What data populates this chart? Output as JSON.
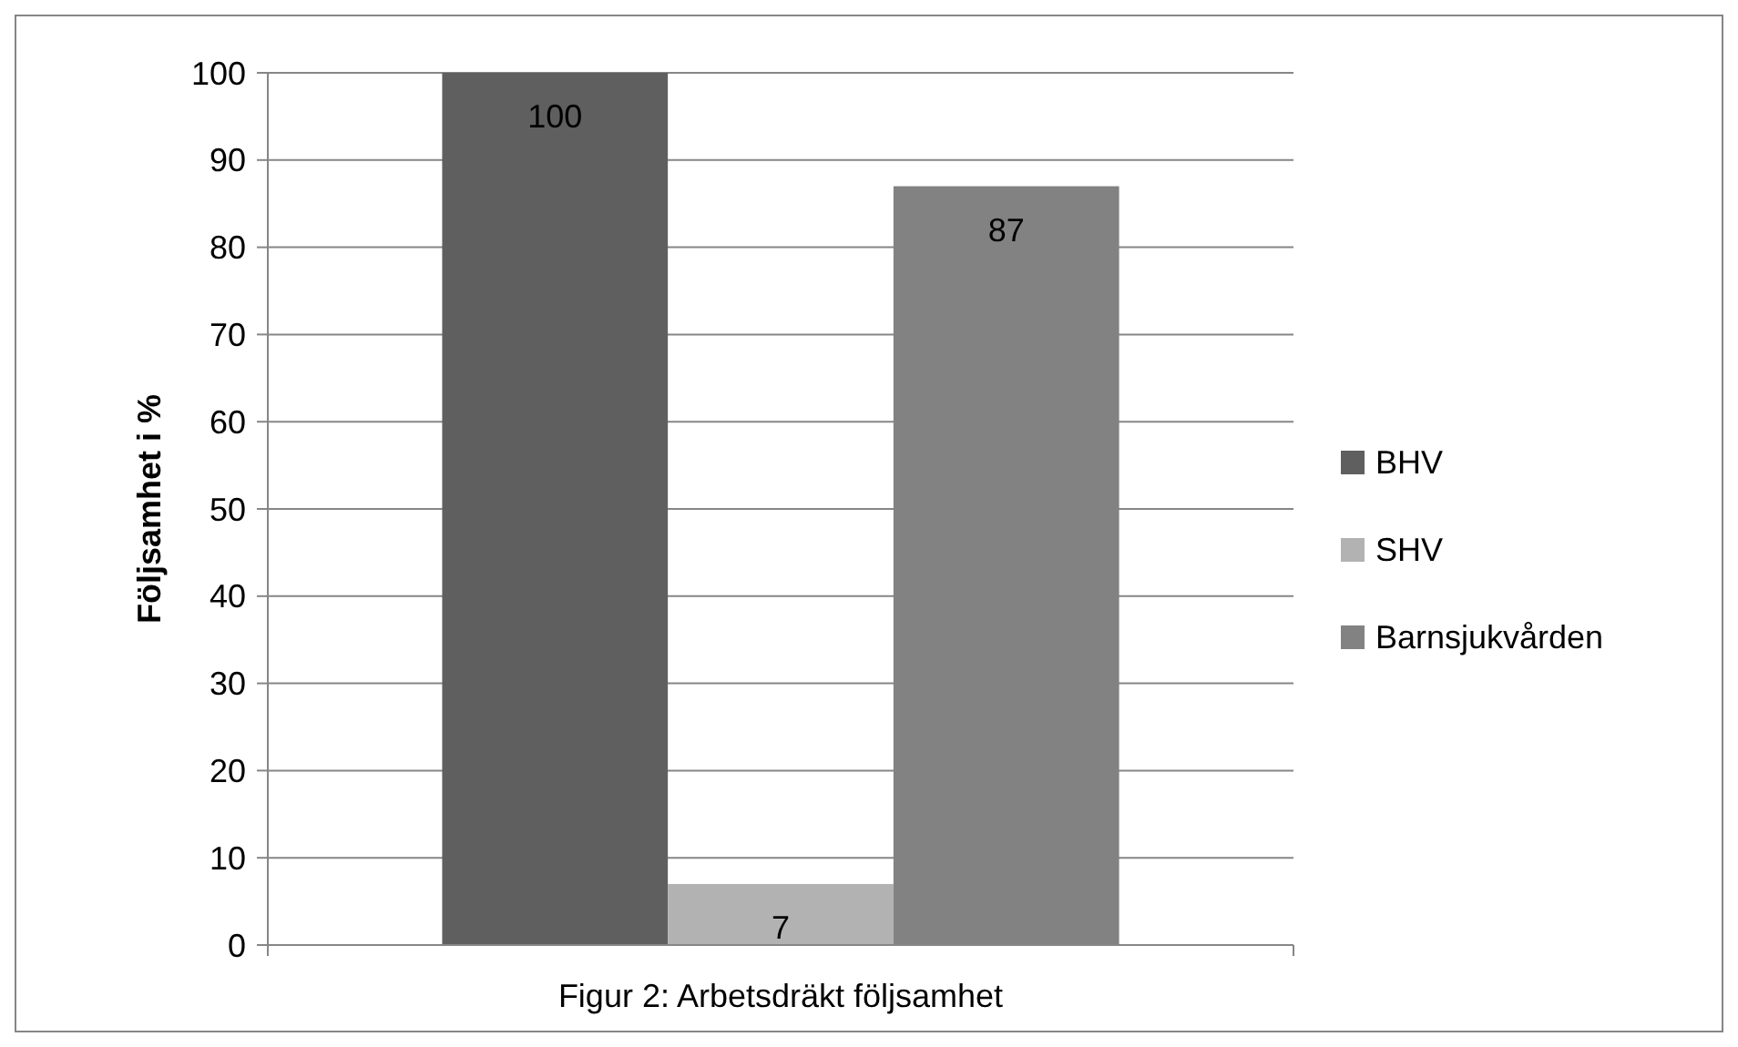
{
  "chart_data": {
    "type": "bar",
    "xlabel": "Figur 2: Arbetsdräkt följsamhet",
    "ylabel": "Följsamhet i %",
    "categories": [
      null
    ],
    "series": [
      {
        "name": "BHV",
        "color": "#5f5f5f",
        "values": [
          100
        ]
      },
      {
        "name": "SHV",
        "color": "#b2b2b2",
        "values": [
          7
        ]
      },
      {
        "name": "Barnsjukvården",
        "color": "#828282",
        "values": [
          87
        ]
      }
    ],
    "ylim": [
      0,
      100
    ],
    "yticks": [
      0,
      10,
      20,
      30,
      40,
      50,
      60,
      70,
      80,
      90,
      100
    ],
    "grid": "y",
    "legend": "right",
    "data_labels": true
  }
}
